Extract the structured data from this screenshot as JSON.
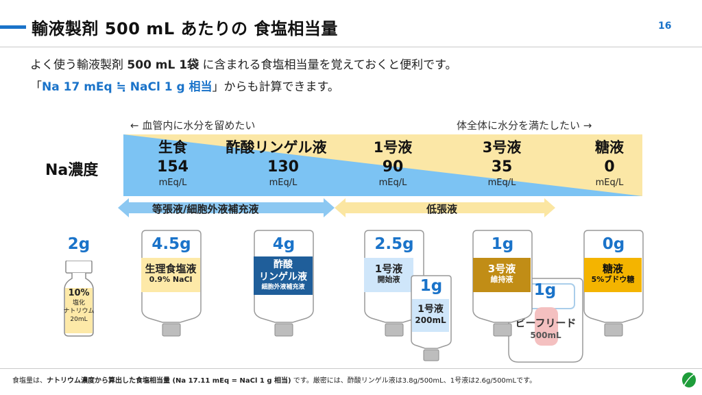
{
  "header": {
    "title": "輸液製剤 500 mL あたりの 食塩相当量",
    "page_number": "16"
  },
  "intro": {
    "line1_pre": "よく使う輸液製剤 ",
    "line1_bold": "500 mL 1袋",
    "line1_post": " に含まれる食塩相当量を覚えておくと便利です。",
    "line2_open": "「",
    "line2_key": "Na 17 mEq ≒ NaCl 1 g 相当",
    "line2_post": "」からも計算できます。"
  },
  "scale": {
    "left_note": "← 血管内に水分を留めたい",
    "right_note": "体全体に水分を満たしたい →",
    "row_label": "Na濃度",
    "columns": [
      {
        "name": "生食",
        "value": "154",
        "unit": "mEq/L"
      },
      {
        "name": "酢酸リンゲル液",
        "value": "130",
        "unit": "mEq/L"
      },
      {
        "name": "1号液",
        "value": "90",
        "unit": "mEq/L"
      },
      {
        "name": "3号液",
        "value": "35",
        "unit": "mEq/L"
      },
      {
        "name": "糖液",
        "value": "0",
        "unit": "mEq/L"
      }
    ],
    "categories": [
      {
        "label": "等張液/細胞外液補充液",
        "color": "#8cc8f2"
      },
      {
        "label": "低張液",
        "color": "#fbe6a2"
      }
    ],
    "colors": {
      "blue": "#7cc3f3",
      "yellow": "#fbe7a6"
    }
  },
  "products": [
    {
      "amount": "2g",
      "line1": "10%",
      "line2": "塩化",
      "line3": "ナトリウム",
      "line4": "20mL",
      "color": "#fde9a8"
    },
    {
      "amount": "4.5g",
      "line1": "生理食塩液",
      "line2": "0.9% NaCl",
      "color": "#fde9a8"
    },
    {
      "amount": "4g",
      "line1": "酢酸",
      "line2": "リンゲル液",
      "line3": "細胞外液補充液",
      "color": "#1f5e9a"
    },
    {
      "amount": "2.5g",
      "line1": "1号液",
      "line2": "開始液",
      "color": "#cfe6fa"
    },
    {
      "amount": "1g",
      "line1": "1号液",
      "line2": "200mL",
      "color": "#cfe6fa"
    },
    {
      "amount": "1g",
      "line1": "3号液",
      "line2": "維持液",
      "color": "#c18d16"
    },
    {
      "amount": "1g",
      "line1": "ビーフリード",
      "line2": "500mL",
      "color": "#f4c0c0"
    },
    {
      "amount": "0g",
      "line1": "糖液",
      "line2": "5%ブドウ糖",
      "color": "#f4b400"
    }
  ],
  "footnote": {
    "pre": "食塩量は、",
    "bold": "ナトリウム濃度から算出した食塩相当量 (Na 17.11 mEq = NaCl 1 g 相当)",
    "post": " です。厳密には、酢酸リンゲル液は3.8g/500mL、1号液は2.6g/500mLです。"
  }
}
